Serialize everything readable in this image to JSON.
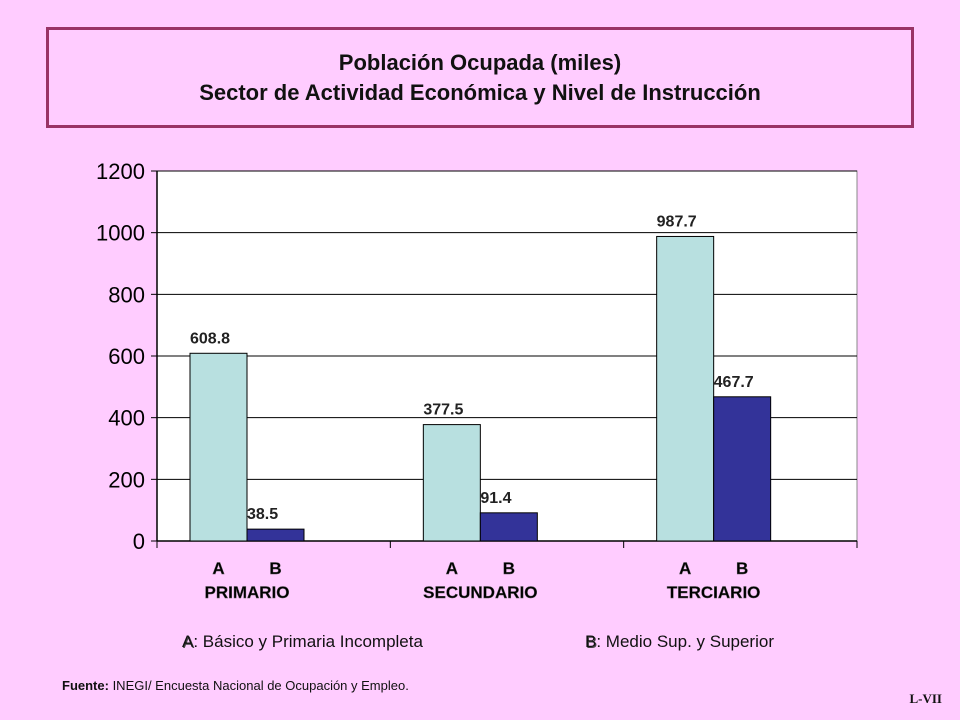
{
  "title": {
    "line1": "Población Ocupada (miles)",
    "line2": "Sector de Actividad Económica y Nivel de Instrucción"
  },
  "chart_data": {
    "type": "bar",
    "title": "Población Ocupada (miles) / Sector de Actividad Económica y Nivel de Instrucción",
    "categories": [
      "PRIMARIO",
      "SECUNDARIO",
      "TERCIARIO"
    ],
    "sub_labels": [
      "A",
      "B"
    ],
    "series": [
      {
        "name": "A",
        "values": [
          608.8,
          377.5,
          987.7
        ],
        "color": "#b8e0e0"
      },
      {
        "name": "B",
        "values": [
          38.5,
          91.4,
          467.7
        ],
        "color": "#333399"
      }
    ],
    "ylim": [
      0,
      1200
    ],
    "yticks": [
      0,
      200,
      400,
      600,
      800,
      1000,
      1200
    ],
    "grid": true
  },
  "legend": {
    "a_key": "A",
    "a_text": ": Básico y Primaria Incompleta",
    "b_key": "B",
    "b_text": ": Medio Sup. y Superior"
  },
  "source": {
    "label": "Fuente:",
    "text": " INEGI/ Encuesta Nacional de Ocupación y Empleo."
  },
  "code": "L-VII",
  "colors": {
    "background": "#ffccff",
    "border": "#993366",
    "plot_background": "#ffffff"
  }
}
